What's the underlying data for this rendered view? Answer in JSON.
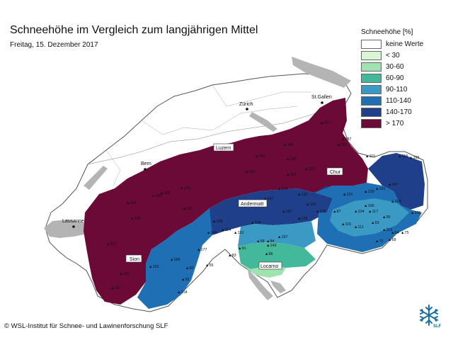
{
  "header": {
    "title": "Schneehöhe im Vergleich zum langjährigen Mittel",
    "subtitle": "Freitag, 15. Dezember 2017"
  },
  "legend": {
    "title": "Schneehöhe [%]",
    "items": [
      {
        "label": "keine Werte",
        "color": "#ffffff"
      },
      {
        "label": "< 30",
        "color": "#d8f5d4"
      },
      {
        "label": "30-60",
        "color": "#9fe3b0"
      },
      {
        "label": "60-90",
        "color": "#44b89a"
      },
      {
        "label": "90-110",
        "color": "#3a9ac4"
      },
      {
        "label": "110-140",
        "color": "#1f6fb4"
      },
      {
        "label": "140-170",
        "color": "#1f3f8a"
      },
      {
        "label": "> 170",
        "color": "#6b0a36"
      }
    ]
  },
  "cities": {
    "zurich": "Zürich",
    "st_gallen": "St.Gallen",
    "luzern": "Luzern",
    "bern": "Bern",
    "chur": "Chur",
    "andermatt": "Andermatt",
    "lausanne": "Lausanne",
    "sion": "Sion",
    "locarno": "Locarno"
  },
  "stations": [
    "217",
    "287",
    "229",
    "118",
    "196",
    "101",
    "178",
    "165",
    "164",
    "191",
    "247",
    "181",
    "212",
    "250",
    "213",
    "230",
    "188",
    "149",
    "177",
    "169",
    "193",
    "155",
    "162",
    "139",
    "202",
    "181",
    "126",
    "110",
    "124",
    "114",
    "157",
    "143",
    "96",
    "91",
    "83",
    "58",
    "84",
    "121",
    "106",
    "99",
    "93",
    "113",
    "115",
    "111",
    "141",
    "147",
    "129",
    "104",
    "87",
    "117",
    "103",
    "68",
    "72",
    "64",
    "75",
    "106",
    "104",
    "92",
    "82",
    "55",
    "146",
    "158",
    "169",
    "132",
    "132",
    "172"
  ],
  "footer": {
    "copyright": "© WSL-Institut für Schnee- und Lawinenforschung SLF",
    "logo_text": "SLF"
  }
}
